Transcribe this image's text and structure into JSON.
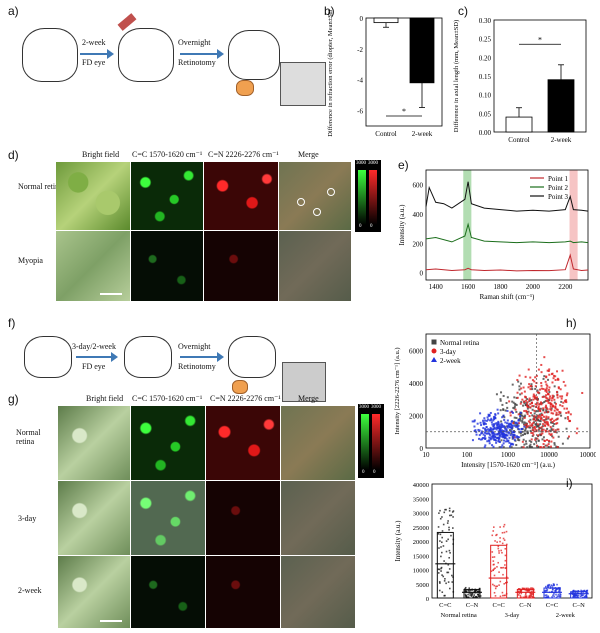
{
  "panels": {
    "a": "a)",
    "b": "b)",
    "c": "c)",
    "d": "d)",
    "e": "e)",
    "f": "f)",
    "g": "g)",
    "h": "h)",
    "i": "i)"
  },
  "panel_a": {
    "step1_top": "2-week",
    "step1_bottom": "FD eye",
    "step2_top": "Overnight",
    "step2_bottom": "Retinotomy"
  },
  "panel_f": {
    "step1_top": "3-day/2-week",
    "step1_bottom": "FD eye",
    "step2_top": "Overnight",
    "step2_bottom": "Retinotomy"
  },
  "panel_d": {
    "columns": [
      "Bright field",
      "C=C 1570-1620 cm⁻¹",
      "C=N 2226-2276 cm⁻¹",
      "Merge"
    ],
    "rows": [
      "Normal retina",
      "Myopia"
    ],
    "colorbar_green": "3000",
    "colorbar_red": "3000",
    "colorbar_zero1": "0",
    "colorbar_zero2": "0"
  },
  "panel_g": {
    "columns": [
      "Bright field",
      "C=C 1570-1620 cm⁻¹",
      "C=N 2226-2276 cm⁻¹",
      "Merge"
    ],
    "rows": [
      "Normal retina",
      "3-day",
      "2-week"
    ],
    "colorbar_green": "3000",
    "colorbar_red": "3000",
    "colorbar_zero1": "0",
    "colorbar_zero2": "0"
  },
  "chart_data": [
    {
      "id": "b",
      "type": "bar",
      "categories": [
        "Control",
        "2-week"
      ],
      "values": [
        -0.3,
        -4.2
      ],
      "errors": [
        0.3,
        1.6
      ],
      "ylabel": "Difference in refraction error (diopter, Mean±SD)",
      "yticks": [
        "0",
        "-2",
        "-4",
        "-6"
      ],
      "ylim": [
        -7,
        0
      ],
      "significance": "*",
      "colors": [
        "#ffffff",
        "#000000"
      ]
    },
    {
      "id": "c",
      "type": "bar",
      "categories": [
        "Control",
        "2-week"
      ],
      "values": [
        0.04,
        0.14
      ],
      "errors": [
        0.025,
        0.04
      ],
      "ylabel": "Difference in axial length (mm, Mean±SD)",
      "yticks": [
        "0.00",
        "0.05",
        "0.10",
        "0.15",
        "0.20",
        "0.25",
        "0.30"
      ],
      "ylim": [
        0,
        0.3
      ],
      "significance": "*",
      "colors": [
        "#ffffff",
        "#000000"
      ]
    },
    {
      "id": "e",
      "type": "line",
      "xlabel": "Raman shift (cm⁻¹)",
      "ylabel": "Intensity (a.u.)",
      "xticks": [
        "1400",
        "1600",
        "1800",
        "2000",
        "2200"
      ],
      "yticks": [
        "0",
        "200",
        "400",
        "600"
      ],
      "xlim": [
        1340,
        2340
      ],
      "ylim": [
        -50,
        700
      ],
      "series": [
        {
          "name": "Point 1",
          "color": "#c0272d",
          "x": [
            1340,
            1400,
            1500,
            1580,
            1600,
            1620,
            1700,
            1800,
            1900,
            2000,
            2100,
            2200,
            2230,
            2250,
            2300,
            2340
          ],
          "y": [
            20,
            25,
            15,
            20,
            30,
            20,
            15,
            18,
            12,
            15,
            14,
            20,
            120,
            25,
            15,
            18
          ]
        },
        {
          "name": "Point 2",
          "color": "#1b6e1b",
          "x": [
            1340,
            1400,
            1500,
            1580,
            1600,
            1620,
            1700,
            1800,
            1900,
            2000,
            2100,
            2200,
            2230,
            2250,
            2300,
            2340
          ],
          "y": [
            230,
            240,
            210,
            250,
            330,
            240,
            215,
            210,
            205,
            210,
            205,
            210,
            215,
            205,
            210,
            205
          ]
        },
        {
          "name": "Point 3",
          "color": "#111111",
          "x": [
            1340,
            1360,
            1400,
            1450,
            1500,
            1580,
            1600,
            1620,
            1700,
            1800,
            1900,
            2000,
            2100,
            2200,
            2230,
            2250,
            2300,
            2340
          ],
          "y": [
            450,
            580,
            480,
            470,
            440,
            500,
            620,
            470,
            440,
            430,
            420,
            425,
            420,
            430,
            520,
            430,
            425,
            420
          ]
        }
      ],
      "highlights": [
        {
          "from": 1570,
          "to": 1620,
          "color": "#9fd49f"
        },
        {
          "from": 2226,
          "to": 2276,
          "color": "#f4b5b5"
        }
      ]
    },
    {
      "id": "h",
      "type": "scatter",
      "xlabel": "Intensity [1570-1620 cm⁻¹] (a.u.)",
      "ylabel": "Intensity [2226-2276 cm⁻¹] (a.u.)",
      "xscale": "log",
      "xticks": [
        "10",
        "100",
        "1000",
        "10000",
        "100000"
      ],
      "yticks": [
        "0",
        "2000",
        "4000",
        "6000"
      ],
      "xlim": [
        10,
        100000
      ],
      "ylim": [
        0,
        7000
      ],
      "series": [
        {
          "name": "Normal retina",
          "color": "#444444",
          "marker": "square"
        },
        {
          "name": "3-day",
          "color": "#e02020",
          "marker": "circle"
        },
        {
          "name": "2-week",
          "color": "#2233dd",
          "marker": "triangle"
        }
      ]
    },
    {
      "id": "i",
      "type": "bar",
      "ylabel": "Intensity (a.u.)",
      "yticks": [
        "0",
        "5000",
        "10000",
        "15000",
        "20000",
        "25000",
        "30000",
        "35000",
        "40000"
      ],
      "ylim": [
        0,
        40000
      ],
      "categories": [
        "C=C",
        "C–N",
        "C=C",
        "C–N",
        "C=C",
        "C–N"
      ],
      "groups": [
        "Normal retina",
        "3-day",
        "2-week"
      ],
      "values": [
        12000,
        2000,
        7000,
        2000,
        2000,
        1500
      ],
      "box_top": [
        23000,
        3000,
        18500,
        3000,
        3500,
        2200
      ],
      "colors": [
        "#111111",
        "#111111",
        "#e02020",
        "#e02020",
        "#2233dd",
        "#2233dd"
      ]
    }
  ]
}
